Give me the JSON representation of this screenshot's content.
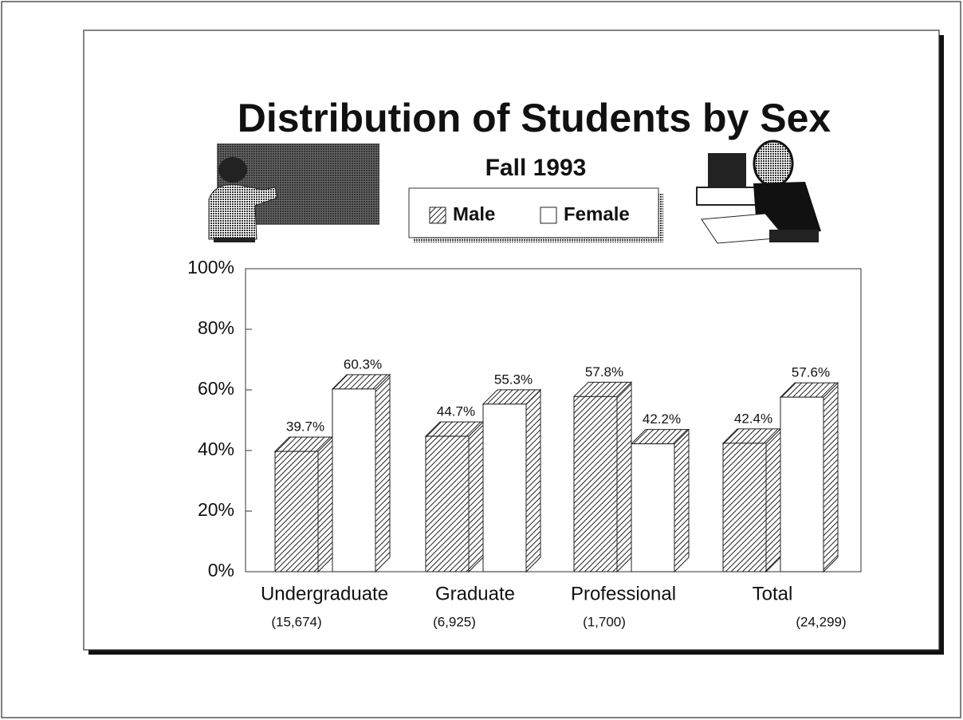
{
  "chart_data": {
    "type": "bar3d",
    "title": "Distribution of Students by Sex",
    "subtitle": "Fall 1993",
    "categories": [
      "Undergraduate",
      "Graduate",
      "Professional",
      "Total"
    ],
    "category_notes": [
      "(15,674)",
      "(6,925)",
      "(1,700)",
      "(24,299)"
    ],
    "series": [
      {
        "name": "Male",
        "color": "hatched",
        "values": [
          39.7,
          44.7,
          57.8,
          42.4
        ],
        "value_labels": [
          "39.7%",
          "44.7%",
          "57.8%",
          "42.4%"
        ]
      },
      {
        "name": "Female",
        "color": "#ffffff",
        "values": [
          60.3,
          55.3,
          42.2,
          57.6
        ],
        "value_labels": [
          "60.3%",
          "55.3%",
          "42.2%",
          "57.6%"
        ]
      }
    ],
    "ylim": [
      0,
      100
    ],
    "yticks": [
      {
        "value": 0,
        "label": "0%"
      },
      {
        "value": 20,
        "label": "20%"
      },
      {
        "value": 40,
        "label": "40%"
      },
      {
        "value": 60,
        "label": "60%"
      },
      {
        "value": 80,
        "label": "80%"
      },
      {
        "value": 100,
        "label": "100%"
      }
    ],
    "grid": false
  }
}
